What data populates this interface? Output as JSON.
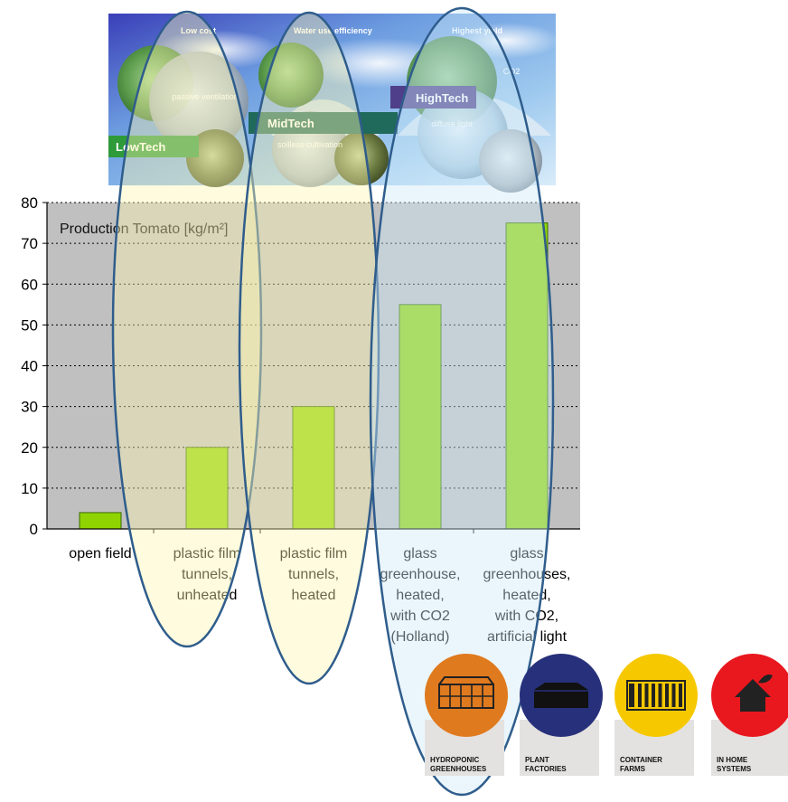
{
  "banner": {
    "top_labels": [
      "Low cost",
      "Water use efficiency",
      "Highest yield"
    ],
    "tiers": [
      "LowTech",
      "MidTech",
      "HighTech"
    ],
    "tier_colors": [
      "#2e9a3a",
      "#1f6a5a",
      "#4f3f8a"
    ],
    "photo_labels": [
      "passive ventilation",
      "soilless cultivation",
      "diffuse light",
      "CO2"
    ]
  },
  "chart_data": {
    "type": "bar",
    "title": "Production Tomato [kg/m²]",
    "categories": [
      [
        "open field"
      ],
      [
        "plastic film",
        "tunnels,",
        "unheated"
      ],
      [
        "plastic film",
        "tunnels,",
        "heated"
      ],
      [
        "glass",
        "greenhouse,",
        "heated,",
        "with CO2",
        "(Holland)"
      ],
      [
        "glass",
        "greenhouses,",
        "heated,",
        "with CO2,",
        "artificial light"
      ]
    ],
    "values": [
      4,
      20,
      30,
      55,
      75
    ],
    "ylim": [
      0,
      80
    ],
    "yticks": [
      0,
      10,
      20,
      30,
      40,
      50,
      60,
      70,
      80
    ],
    "grid": true,
    "bar_color": "#8fd400",
    "plot_bg": "#c0c0c0"
  },
  "highlight_ellipses": {
    "colors": [
      "#fdf5b0",
      "#fdf5b0",
      "#cdeaf7"
    ],
    "stroke": "#2f5d8c"
  },
  "icons": [
    {
      "name": "HYDROPONIC GREENHOUSES",
      "lines": [
        "HYDROPONIC",
        "GREENHOUSES"
      ],
      "color": "#e07a1f"
    },
    {
      "name": "PLANT FACTORIES",
      "lines": [
        "PLANT",
        "FACTORIES"
      ],
      "color": "#27307a"
    },
    {
      "name": "CONTAINER FARMS",
      "lines": [
        "CONTAINER",
        "FARMS"
      ],
      "color": "#f6c800"
    },
    {
      "name": "IN HOME SYSTEMS",
      "lines": [
        "IN HOME",
        "SYSTEMS"
      ],
      "color": "#e8181e"
    }
  ]
}
